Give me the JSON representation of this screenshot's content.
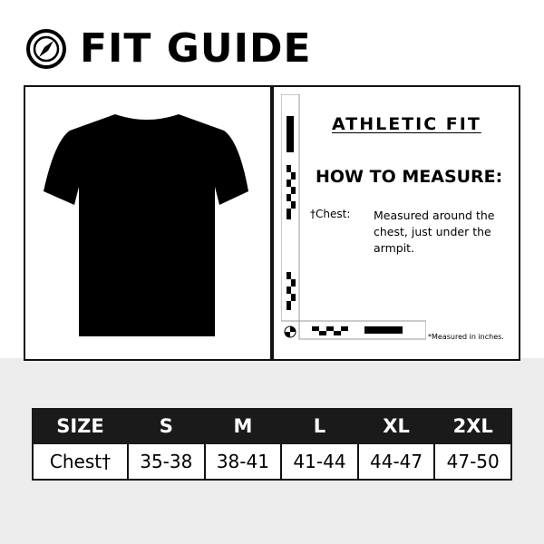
{
  "title": "FIT GUIDE",
  "fit_label": "ATHLETIC FIT",
  "how_to": "HOW TO MEASURE:",
  "chest_label": "†Chest:",
  "chest_desc": "Measured around the chest, just under the armpit.",
  "note": "*Measured in inches.",
  "table": {
    "header": [
      "SIZE",
      "S",
      "M",
      "L",
      "XL",
      "2XL"
    ],
    "row": [
      "Chest†",
      "35-38",
      "38-41",
      "41-44",
      "44-47",
      "47-50"
    ]
  }
}
